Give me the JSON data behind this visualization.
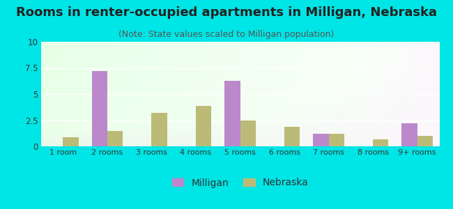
{
  "title": "Rooms in renter-occupied apartments in Milligan, Nebraska",
  "subtitle": "(Note: State values scaled to Milligan population)",
  "categories": [
    "1 room",
    "2 rooms",
    "3 rooms",
    "4 rooms",
    "5 rooms",
    "6 rooms",
    "7 rooms",
    "8 rooms",
    "9+ rooms"
  ],
  "milligan_values": [
    0,
    7.2,
    0,
    0,
    6.3,
    0,
    1.2,
    0,
    2.2
  ],
  "nebraska_values": [
    0.9,
    1.5,
    3.2,
    3.9,
    2.5,
    1.9,
    1.2,
    0.7,
    1.0
  ],
  "milligan_color": "#bb88cc",
  "nebraska_color": "#bbbb77",
  "ylim": [
    0,
    10
  ],
  "yticks": [
    0,
    2.5,
    5,
    7.5,
    10
  ],
  "background_color": "#00e5e5",
  "bar_width": 0.35,
  "title_fontsize": 13,
  "subtitle_fontsize": 9,
  "legend_milligan": "Milligan",
  "legend_nebraska": "Nebraska"
}
